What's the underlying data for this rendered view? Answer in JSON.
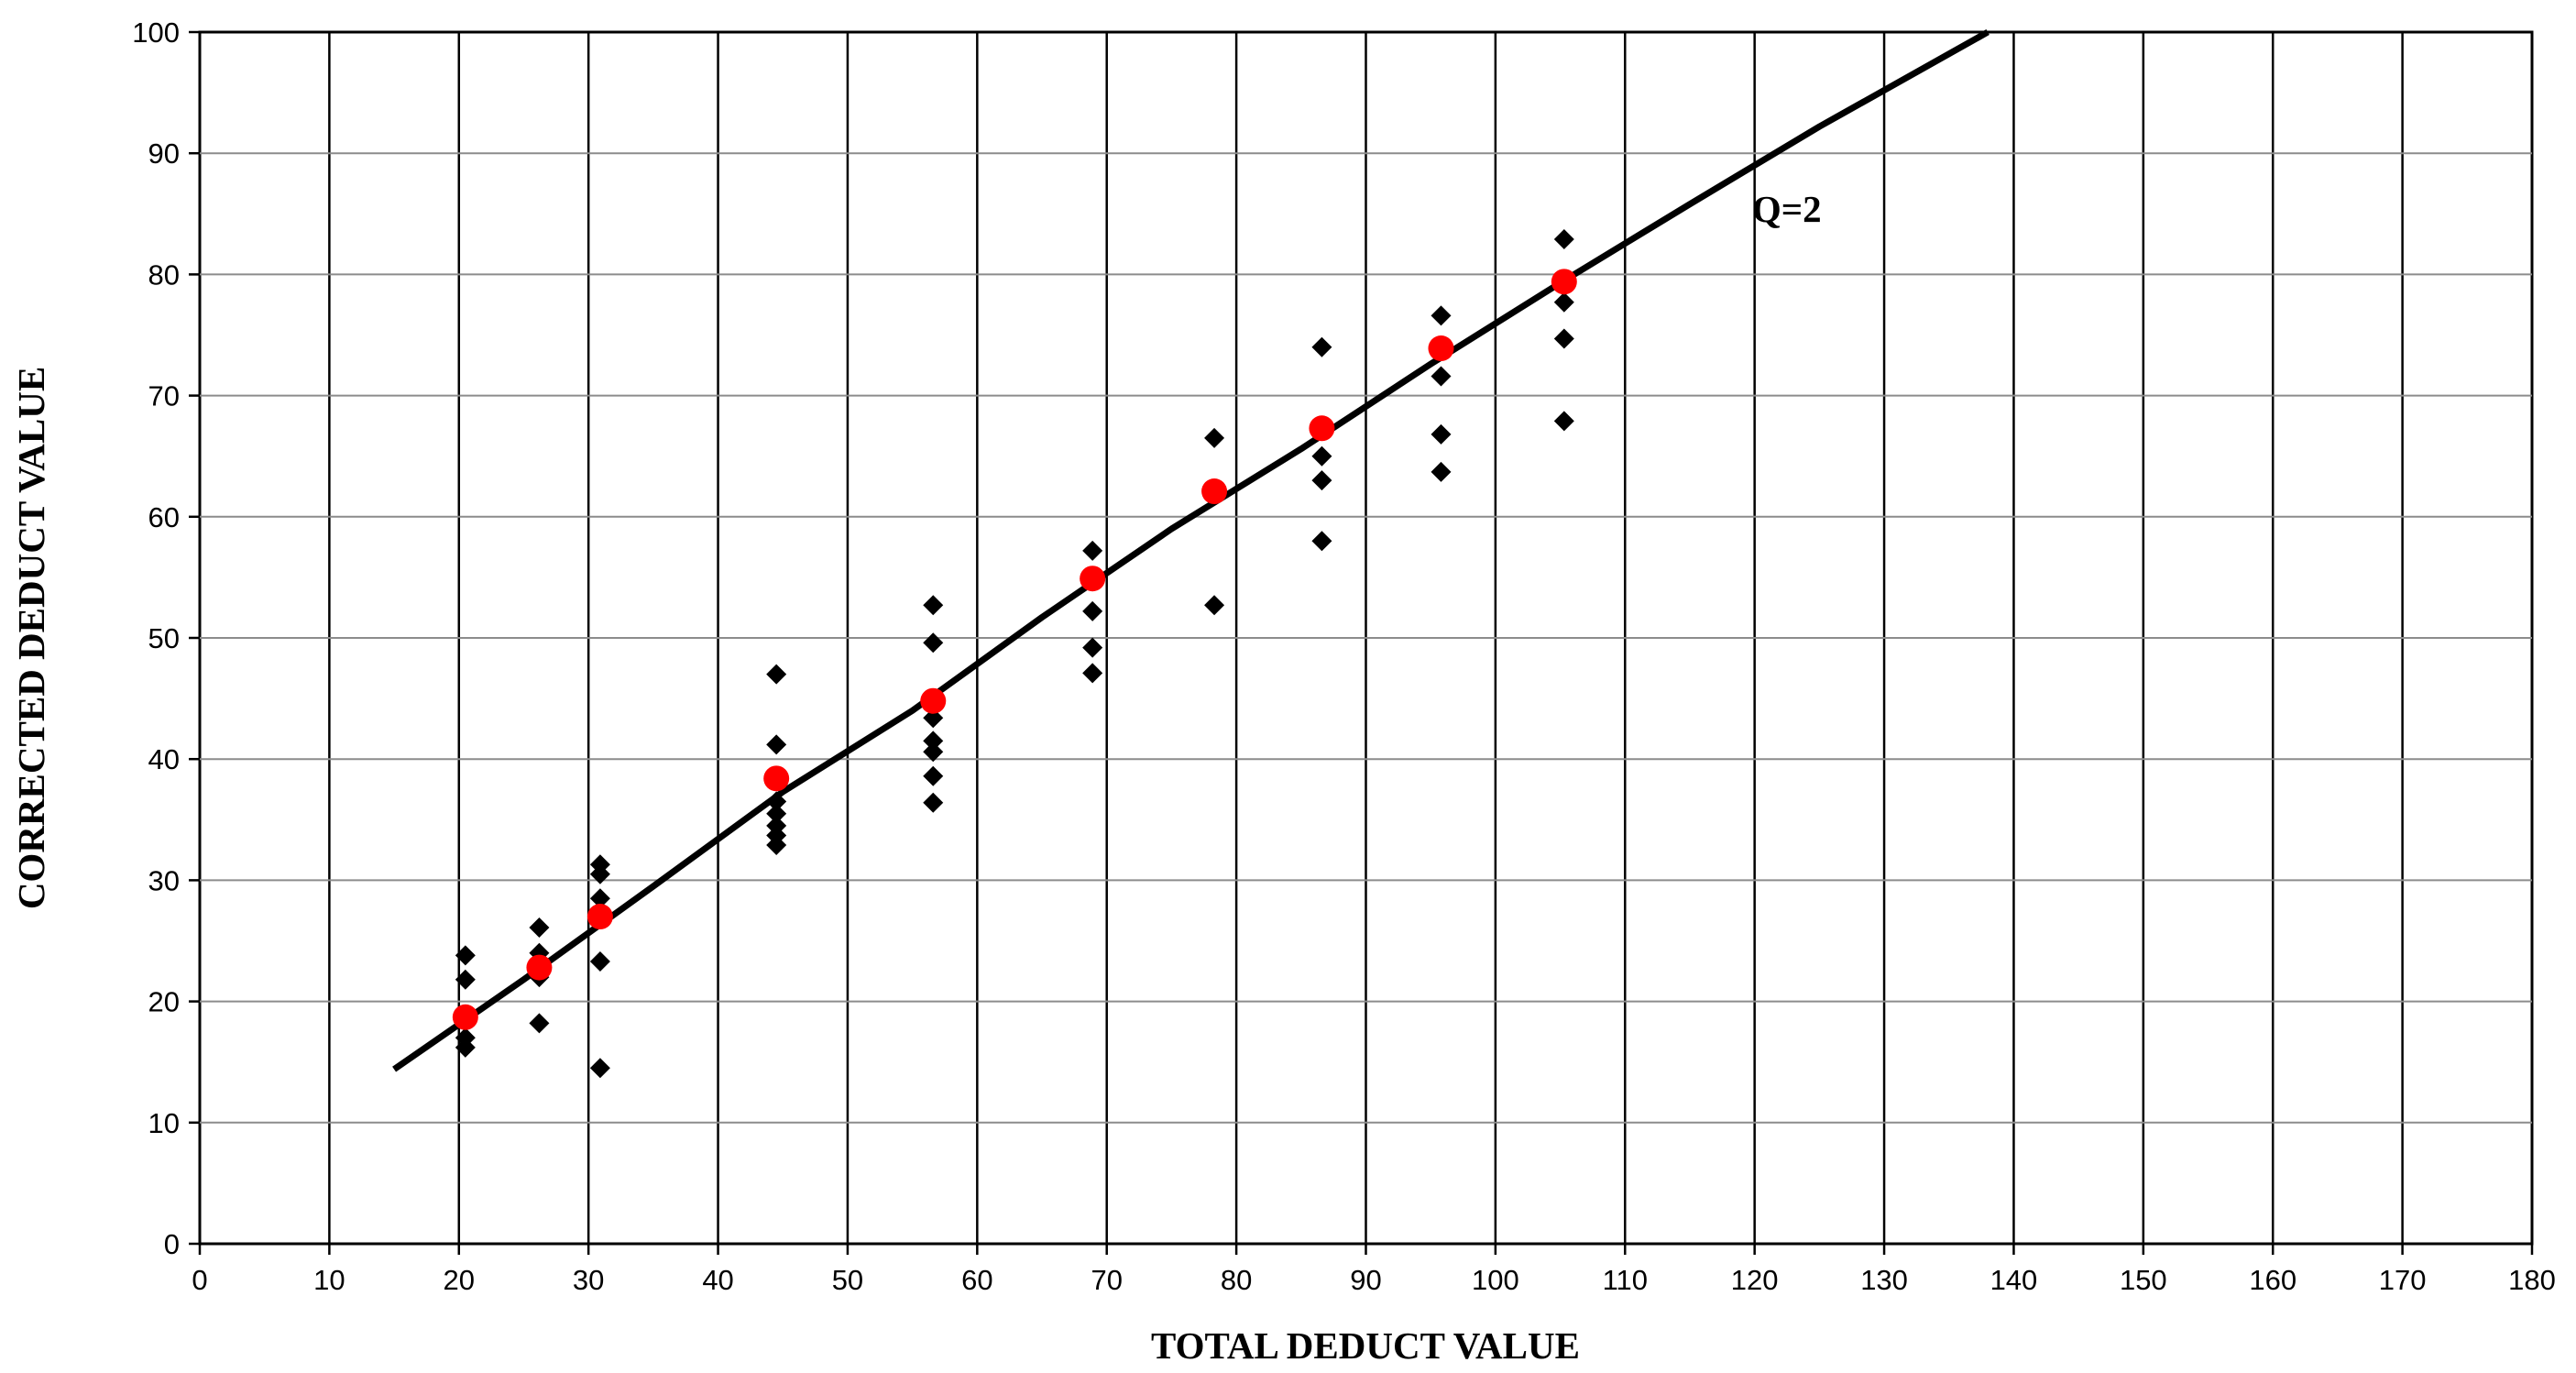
{
  "chart_data": {
    "type": "scatter",
    "title": "",
    "xlabel": "TOTAL DEDUCT VALUE",
    "ylabel": "CORRECTED DEDUCT VALUE",
    "xlim": [
      0,
      180
    ],
    "ylim": [
      0,
      100
    ],
    "x_ticks": [
      0,
      10,
      20,
      30,
      40,
      50,
      60,
      70,
      80,
      90,
      100,
      110,
      120,
      130,
      140,
      150,
      160,
      170,
      180
    ],
    "y_ticks": [
      0,
      10,
      20,
      30,
      40,
      50,
      60,
      70,
      80,
      90,
      100
    ],
    "grid": true,
    "legend": "none",
    "series": [
      {
        "marker": "diamond",
        "color": "#000000",
        "points": [
          [
            20.5,
            23.8
          ],
          [
            20.5,
            21.8
          ],
          [
            20.5,
            17.0
          ],
          [
            20.5,
            16.2
          ],
          [
            26.2,
            26.1
          ],
          [
            26.2,
            24.0
          ],
          [
            26.2,
            22.0
          ],
          [
            26.2,
            18.2
          ],
          [
            30.9,
            31.3
          ],
          [
            30.9,
            30.5
          ],
          [
            30.9,
            28.5
          ],
          [
            30.9,
            23.3
          ],
          [
            30.9,
            14.5
          ],
          [
            44.5,
            47.0
          ],
          [
            44.5,
            41.2
          ],
          [
            44.5,
            36.5
          ],
          [
            44.5,
            35.5
          ],
          [
            44.5,
            34.5
          ],
          [
            44.5,
            33.7
          ],
          [
            44.5,
            32.9
          ],
          [
            56.6,
            52.7
          ],
          [
            56.6,
            49.6
          ],
          [
            56.6,
            43.4
          ],
          [
            56.6,
            41.5
          ],
          [
            56.6,
            40.6
          ],
          [
            56.6,
            38.6
          ],
          [
            56.6,
            36.4
          ],
          [
            68.9,
            57.2
          ],
          [
            68.9,
            52.2
          ],
          [
            68.9,
            49.2
          ],
          [
            68.9,
            47.1
          ],
          [
            78.3,
            66.5
          ],
          [
            78.3,
            52.7
          ],
          [
            86.6,
            74.0
          ],
          [
            86.6,
            65.0
          ],
          [
            86.6,
            63.0
          ],
          [
            86.6,
            58.0
          ],
          [
            95.8,
            76.6
          ],
          [
            95.8,
            71.6
          ],
          [
            95.8,
            66.8
          ],
          [
            95.8,
            63.7
          ],
          [
            105.3,
            82.9
          ],
          [
            105.3,
            77.7
          ],
          [
            105.3,
            74.7
          ],
          [
            105.3,
            67.9
          ]
        ]
      },
      {
        "marker": "circle",
        "color": "#ff0000",
        "points": [
          [
            20.5,
            18.7
          ],
          [
            26.2,
            22.8
          ],
          [
            30.9,
            27.0
          ],
          [
            44.5,
            38.4
          ],
          [
            56.6,
            44.8
          ],
          [
            68.9,
            54.9
          ],
          [
            78.3,
            62.1
          ],
          [
            86.6,
            67.3
          ],
          [
            95.8,
            73.9
          ],
          [
            105.3,
            79.4
          ]
        ]
      }
    ],
    "fit_line": {
      "label": "Q=2",
      "color": "#000000",
      "x": [
        15.0,
        25,
        35,
        45,
        55,
        65,
        75,
        85,
        95,
        105,
        115,
        125,
        138
      ],
      "y": [
        14.4,
        21.8,
        29.5,
        37.3,
        44.0,
        51.7,
        59.0,
        65.6,
        72.6,
        79.3,
        85.8,
        92.2,
        100.0
      ],
      "label_x": 119.8,
      "label_y": 85.4
    }
  }
}
